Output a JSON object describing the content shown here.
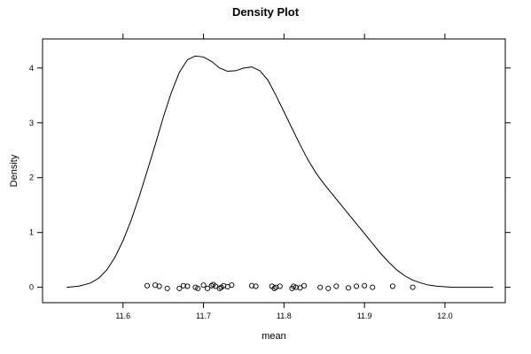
{
  "chart_data": {
    "type": "line",
    "title": "Density Plot",
    "xlabel": "mean",
    "ylabel": "Density",
    "xlim": [
      11.5,
      12.075
    ],
    "ylim": [
      -0.28,
      4.53
    ],
    "x_ticks": [
      11.6,
      11.7,
      11.8,
      11.9,
      12.0
    ],
    "x_tick_labels": [
      "11.6",
      "11.7",
      "11.8",
      "11.9",
      "12.0"
    ],
    "y_ticks": [
      0,
      1,
      2,
      3,
      4
    ],
    "y_tick_labels": [
      "0",
      "1",
      "2",
      "3",
      "4"
    ],
    "grid": false,
    "series": [
      {
        "x": [
          11.53,
          11.545,
          11.56,
          11.57,
          11.58,
          11.59,
          11.6,
          11.61,
          11.62,
          11.63,
          11.64,
          11.65,
          11.66,
          11.67,
          11.68,
          11.69,
          11.7,
          11.71,
          11.72,
          11.73,
          11.74,
          11.75,
          11.76,
          11.77,
          11.78,
          11.79,
          11.8,
          11.81,
          11.82,
          11.83,
          11.84,
          11.85,
          11.86,
          11.87,
          11.88,
          11.89,
          11.9,
          11.91,
          11.92,
          11.93,
          11.94,
          11.95,
          11.96,
          11.97,
          11.98,
          11.99,
          12.0,
          12.01,
          12.02,
          12.03,
          12.045,
          12.06
        ],
        "y": [
          0.0,
          0.02,
          0.08,
          0.17,
          0.32,
          0.55,
          0.85,
          1.22,
          1.65,
          2.12,
          2.6,
          3.1,
          3.55,
          3.92,
          4.15,
          4.22,
          4.2,
          4.12,
          4.0,
          3.94,
          3.95,
          4.0,
          4.02,
          3.95,
          3.78,
          3.5,
          3.2,
          2.9,
          2.6,
          2.32,
          2.08,
          1.88,
          1.7,
          1.52,
          1.34,
          1.16,
          0.98,
          0.8,
          0.62,
          0.46,
          0.32,
          0.21,
          0.13,
          0.08,
          0.04,
          0.02,
          0.01,
          0.0,
          0.0,
          0.0,
          0.0,
          0.0
        ]
      }
    ],
    "rug": {
      "x": [
        11.63,
        11.64,
        11.645,
        11.655,
        11.67,
        11.675,
        11.68,
        11.69,
        11.693,
        11.7,
        11.705,
        11.71,
        11.712,
        11.715,
        11.72,
        11.722,
        11.725,
        11.73,
        11.735,
        11.76,
        11.765,
        11.785,
        11.788,
        11.79,
        11.795,
        11.81,
        11.812,
        11.815,
        11.82,
        11.825,
        11.845,
        11.855,
        11.865,
        11.88,
        11.89,
        11.9,
        11.91,
        11.935,
        11.96
      ],
      "y": [
        0.03,
        0.04,
        0.02,
        -0.02,
        -0.02,
        0.03,
        0.02,
        0.0,
        -0.02,
        0.04,
        -0.02,
        0.03,
        0.05,
        0.02,
        -0.02,
        0.0,
        0.03,
        0.01,
        0.04,
        0.03,
        0.02,
        0.02,
        -0.02,
        0.0,
        0.02,
        -0.02,
        0.02,
        0.0,
        -0.01,
        0.03,
        0.0,
        -0.02,
        0.02,
        -0.01,
        0.02,
        0.03,
        0.0,
        0.02,
        0.0
      ]
    }
  }
}
